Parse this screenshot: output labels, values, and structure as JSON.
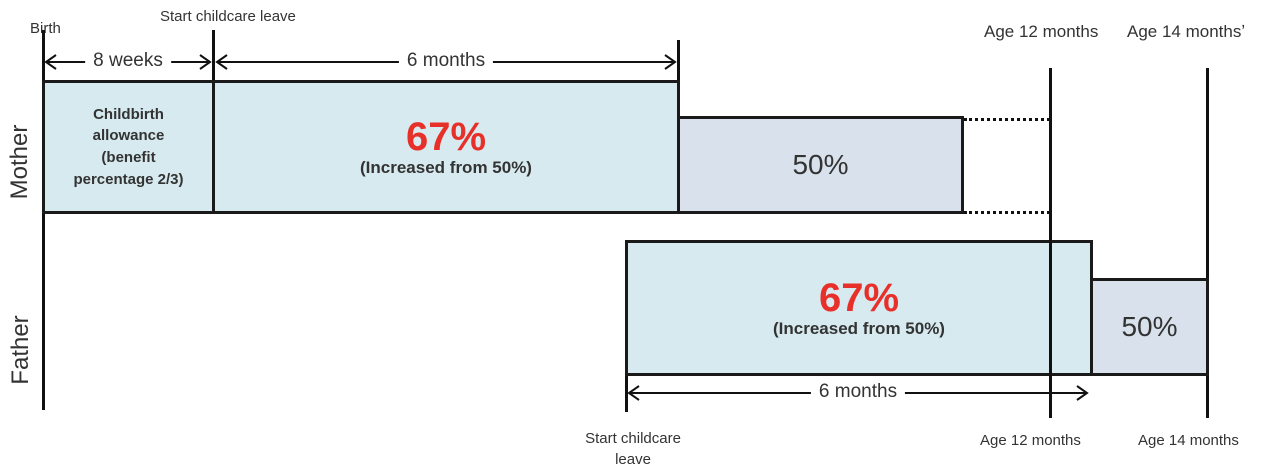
{
  "labels": {
    "birth": "Birth",
    "start_leave_top": "Start childcare leave",
    "age12_top": "Age 12 months",
    "age14_top": "Age 14 monthsʼ",
    "start_leave_bottom_line1": "Start childcare",
    "start_leave_bottom_line2": "leave",
    "age12_bottom": "Age 12 months",
    "age14_bottom": "Age 14 months"
  },
  "rows": {
    "mother": "Mother",
    "father": "Father"
  },
  "durations": {
    "weeks8": "8 weeks",
    "months6_top": "6 months",
    "months6_bottom": "6 months"
  },
  "mother": {
    "allowance_line1": "Childbirth",
    "allowance_line2": "allowance",
    "allowance_line3": "(benefit",
    "allowance_line4": "percentage 2/3)",
    "pct_main": "67%",
    "pct_main_note": "(Increased from 50%)",
    "pct_after": "50%"
  },
  "father": {
    "pct_main": "67%",
    "pct_main_note": "(Increased from 50%)",
    "pct_after": "50%"
  },
  "colors": {
    "accent_red": "#e8302a",
    "box_light": "#d7eaf0",
    "box_mid": "#d9e2ec"
  }
}
